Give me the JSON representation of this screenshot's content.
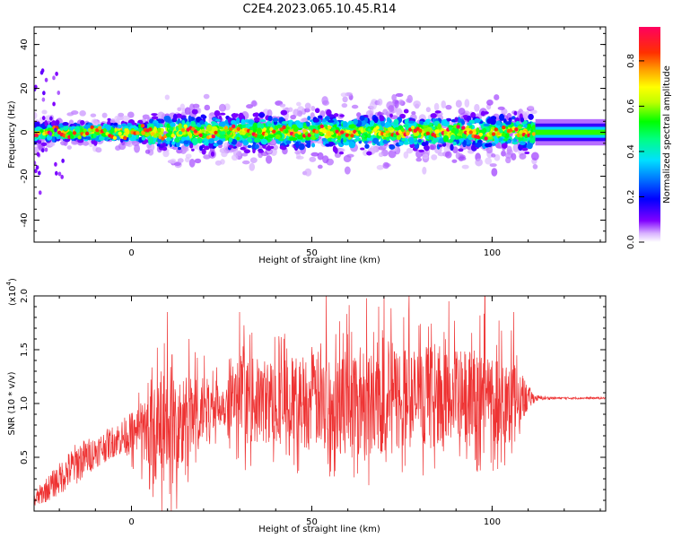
{
  "figure": {
    "title": "C2E4.2023.065.10.45.R14"
  },
  "chart_data": [
    {
      "type": "heatmap",
      "title": "C2E4.2023.065.10.45.R14",
      "xlabel": "Height of straight line (km)",
      "ylabel": "Frequency (Hz)",
      "xlim": [
        -27,
        131.5
      ],
      "ylim": [
        -50,
        48
      ],
      "x_ticks": [
        "0",
        "50",
        "100"
      ],
      "y_ticks": [
        "-40",
        "-20",
        "0",
        "20",
        "40"
      ],
      "colorbar": {
        "label": "Normalized spectral amplitude",
        "range": [
          0.0,
          0.95
        ],
        "ticks": [
          "0.0",
          "0.2",
          "0.4",
          "0.6",
          "0.8"
        ]
      },
      "ridge": {
        "description": "spectral energy concentrated near 0 Hz across all heights",
        "center_freq_hz": 0,
        "spread_hz": [
          -15,
          15
        ],
        "high_amplitude_segment_km": [
          112,
          131.5
        ]
      },
      "grid": false
    },
    {
      "type": "line",
      "xlabel": "Height of straight line (km)",
      "ylabel": "SNR (10 * v/v)",
      "y_scale_label": "(x10",
      "y_scale_exp": "4",
      "xlim": [
        -27,
        131.5
      ],
      "ylim": [
        0,
        2.0
      ],
      "x_ticks": [
        "0",
        "50",
        "100"
      ],
      "y_ticks": [
        "0.5",
        "1.0",
        "1.5",
        "2.0"
      ],
      "color": "#ee3333",
      "series": [
        {
          "x": [
            -27,
            -20,
            -15,
            -10,
            -5,
            0,
            5,
            10,
            15,
            20,
            25,
            30,
            40,
            50,
            60,
            70,
            80,
            90,
            100,
            105,
            110,
            112,
            115,
            120,
            125,
            131.5
          ],
          "baseline": [
            0.1,
            0.3,
            0.45,
            0.55,
            0.65,
            0.72,
            0.75,
            0.7,
            0.8,
            0.95,
            1.0,
            1.02,
            1.02,
            1.03,
            1.04,
            1.05,
            1.05,
            1.04,
            1.05,
            1.05,
            1.05,
            1.05,
            1.05,
            1.05,
            1.05,
            1.05
          ],
          "noise_amplitude": [
            0.08,
            0.15,
            0.2,
            0.15,
            0.15,
            0.2,
            0.35,
            0.6,
            0.45,
            0.3,
            0.2,
            0.4,
            0.4,
            0.45,
            0.5,
            0.55,
            0.45,
            0.45,
            0.45,
            0.4,
            0.12,
            0.03,
            0.015,
            0.01,
            0.01,
            0.01
          ],
          "peaks": [
            [
              10,
              1.85
            ],
            [
              16,
              1.6
            ],
            [
              30,
              1.85
            ],
            [
              54,
              2.0
            ],
            [
              70,
              2.0
            ],
            [
              77,
              2.0
            ],
            [
              88,
              1.95
            ],
            [
              98,
              2.0
            ],
            [
              106,
              1.85
            ]
          ]
        }
      ],
      "grid": false
    }
  ]
}
